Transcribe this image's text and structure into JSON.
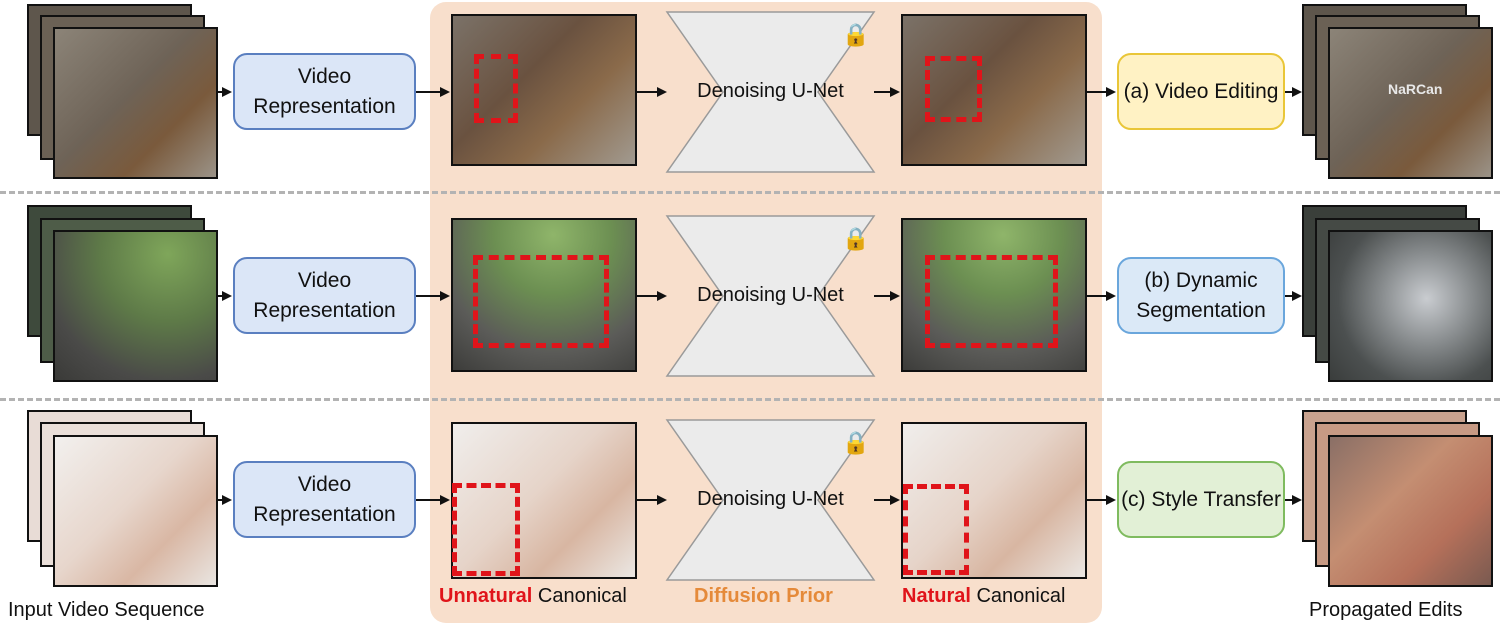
{
  "diagram": {
    "captions": {
      "input": "Input Video Sequence",
      "output": "Propagated Edits",
      "unnatural_word": "Unnatural",
      "canonical_word": "Canonical",
      "natural_word": "Natural",
      "prior": "Diffusion Prior"
    },
    "rows": [
      {
        "rep_label": "Video Representation",
        "unet_label": "Denoising U-Net",
        "task_label": "(a) Video Editing",
        "overlay_text": "NaRCan"
      },
      {
        "rep_label": "Video Representation",
        "unet_label": "Denoising U-Net",
        "task_label": "(b) Dynamic Segmentation"
      },
      {
        "rep_label": "Video Representation",
        "unet_label": "Denoising U-Net",
        "task_label": "(c) Style Transfer"
      }
    ],
    "icons": {
      "lock": "lock-icon"
    }
  }
}
